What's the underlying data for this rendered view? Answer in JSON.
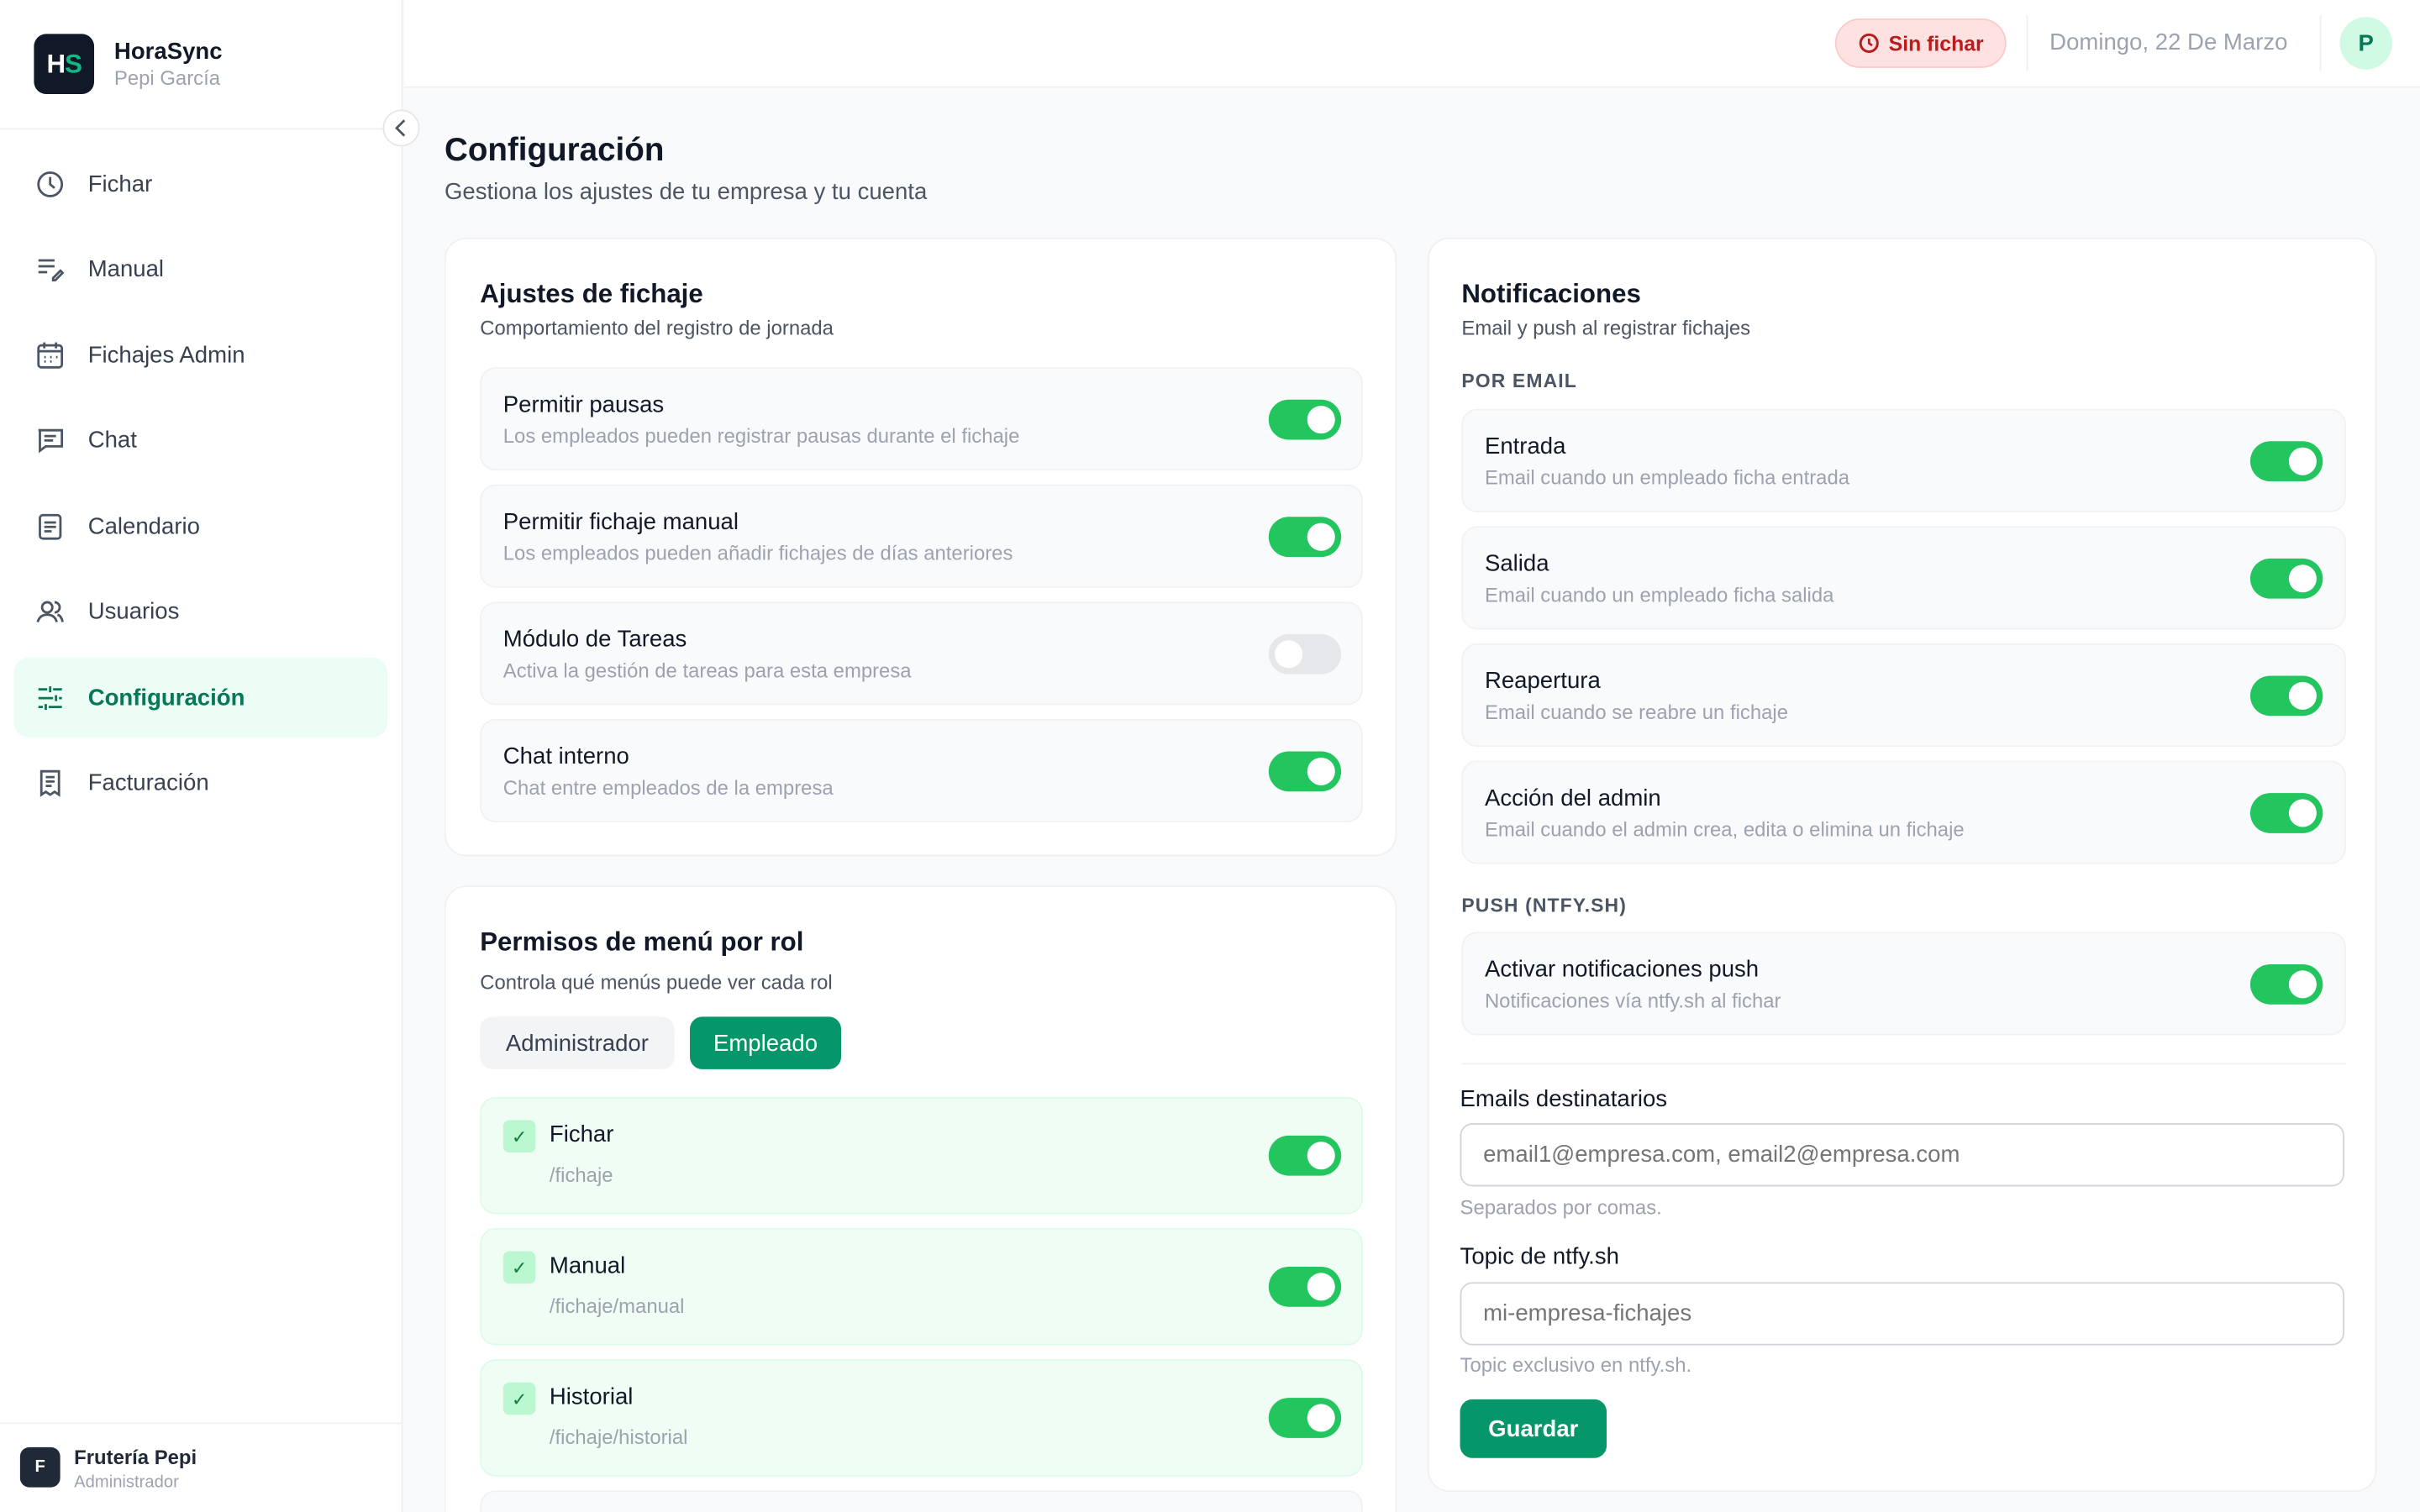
{
  "app": {
    "logo_h": "H",
    "logo_s": "S",
    "name": "HoraSync",
    "user": "Pepi García"
  },
  "sidebar": {
    "items": [
      {
        "label": "Fichar",
        "icon": "clock-icon"
      },
      {
        "label": "Manual",
        "icon": "list-edit-icon"
      },
      {
        "label": "Fichajes Admin",
        "icon": "calendar-grid-icon"
      },
      {
        "label": "Chat",
        "icon": "chat-icon"
      },
      {
        "label": "Calendario",
        "icon": "document-icon"
      },
      {
        "label": "Usuarios",
        "icon": "users-icon"
      },
      {
        "label": "Configuración",
        "icon": "sliders-icon",
        "active": true
      },
      {
        "label": "Facturación",
        "icon": "receipt-icon"
      }
    ],
    "footer": {
      "initial": "F",
      "company": "Frutería Pepi",
      "role": "Administrador"
    }
  },
  "header": {
    "status": "Sin fichar",
    "date": "Domingo, 22 De Marzo",
    "avatar": "P"
  },
  "page": {
    "title": "Configuración",
    "subtitle": "Gestiona los ajustes de tu empresa y tu cuenta"
  },
  "fichaje": {
    "title": "Ajustes de fichaje",
    "subtitle": "Comportamiento del registro de jornada",
    "rows": [
      {
        "title": "Permitir pausas",
        "desc": "Los empleados pueden registrar pausas durante el fichaje",
        "on": true
      },
      {
        "title": "Permitir fichaje manual",
        "desc": "Los empleados pueden añadir fichajes de días anteriores",
        "on": true
      },
      {
        "title": "Módulo de Tareas",
        "desc": "Activa la gestión de tareas para esta empresa",
        "on": false
      },
      {
        "title": "Chat interno",
        "desc": "Chat entre empleados de la empresa",
        "on": true
      }
    ]
  },
  "permisos": {
    "title": "Permisos de menú por rol",
    "subtitle": "Controla qué menús puede ver cada rol",
    "tabs": [
      "Administrador",
      "Empleado"
    ],
    "active_tab": "Empleado",
    "rows": [
      {
        "title": "Fichar",
        "path": "/fichaje",
        "checked": true,
        "on": true
      },
      {
        "title": "Manual",
        "path": "/fichaje/manual",
        "checked": true,
        "on": true
      },
      {
        "title": "Historial",
        "path": "/fichaje/historial",
        "checked": true,
        "on": true
      }
    ]
  },
  "notificaciones": {
    "title": "Notificaciones",
    "subtitle": "Email y push al registrar fichajes",
    "email_section": "POR EMAIL",
    "email_rows": [
      {
        "title": "Entrada",
        "desc": "Email cuando un empleado ficha entrada",
        "on": true
      },
      {
        "title": "Salida",
        "desc": "Email cuando un empleado ficha salida",
        "on": true
      },
      {
        "title": "Reapertura",
        "desc": "Email cuando se reabre un fichaje",
        "on": true
      },
      {
        "title": "Acción del admin",
        "desc": "Email cuando el admin crea, edita o elimina un fichaje",
        "on": true
      }
    ],
    "push_section": "PUSH (NTFY.SH)",
    "push_rows": [
      {
        "title": "Activar notificaciones push",
        "desc": "Notificaciones vía ntfy.sh al fichar",
        "on": true
      }
    ],
    "emails_label": "Emails destinatarios",
    "emails_value": "",
    "emails_placeholder": "email1@empresa.com, email2@empresa.com",
    "emails_help": "Separados por comas.",
    "topic_label": "Topic de ntfy.sh",
    "topic_value": "",
    "topic_placeholder": "mi-empresa-fichajes",
    "topic_help": "Topic exclusivo en ntfy.sh.",
    "save": "Guardar"
  },
  "colors": {
    "accent": "#059669",
    "toggle_on": "#22c55e",
    "sidebar_active_bg": "#ecfdf5",
    "badge_bg": "#fee2e2",
    "badge_text": "#b91c1c",
    "logo_bg": "#111827"
  }
}
